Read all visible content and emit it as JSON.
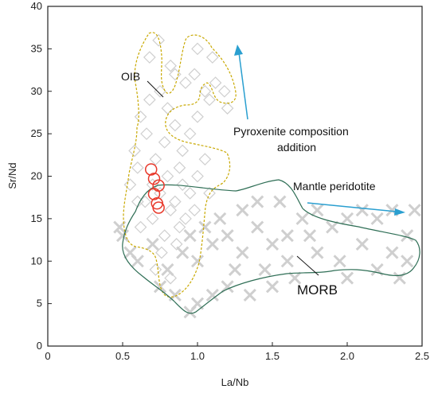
{
  "chart_data": {
    "type": "scatter",
    "xlabel": "La/Nb",
    "ylabel": "Sr/Nd",
    "xlim": [
      0,
      2.5
    ],
    "ylim": [
      0,
      40
    ],
    "xticks": [
      "0",
      "0.5",
      "1.0",
      "1.5",
      "2.0",
      "2.5"
    ],
    "yticks": [
      "0",
      "5",
      "10",
      "15",
      "20",
      "25",
      "30",
      "35",
      "40"
    ],
    "grid": false,
    "colors": {
      "oib_field": "#c8a800",
      "morb_field": "#2e6e55",
      "arrow": "#2a9fd0",
      "sample": "#e8392b",
      "grey_points": "#cfcfcf"
    },
    "series": [
      {
        "marker": "diamond",
        "points": [
          [
            0.75,
            30
          ],
          [
            0.8,
            28
          ],
          [
            0.85,
            26
          ],
          [
            0.78,
            24
          ],
          [
            0.72,
            22
          ],
          [
            0.9,
            23
          ],
          [
            0.95,
            25
          ],
          [
            1.0,
            27
          ],
          [
            0.88,
            21
          ],
          [
            0.8,
            20
          ],
          [
            0.7,
            19
          ],
          [
            0.75,
            18
          ],
          [
            0.85,
            17
          ],
          [
            0.95,
            18
          ],
          [
            1.0,
            20
          ],
          [
            1.05,
            22
          ],
          [
            0.9,
            19
          ],
          [
            0.82,
            16
          ],
          [
            0.7,
            15
          ],
          [
            0.65,
            17
          ],
          [
            0.6,
            21
          ],
          [
            0.58,
            23
          ],
          [
            0.78,
            13
          ],
          [
            0.88,
            14
          ],
          [
            0.98,
            16
          ],
          [
            1.08,
            18
          ],
          [
            0.92,
            15
          ],
          [
            0.76,
            11
          ],
          [
            0.86,
            12
          ],
          [
            0.72,
            9
          ],
          [
            0.82,
            8
          ],
          [
            0.68,
            34
          ],
          [
            0.74,
            36
          ],
          [
            0.82,
            33
          ],
          [
            0.92,
            31
          ],
          [
            0.98,
            32
          ],
          [
            1.05,
            30
          ],
          [
            1.08,
            29
          ],
          [
            1.12,
            31
          ],
          [
            1.18,
            30
          ],
          [
            1.2,
            28
          ],
          [
            1.1,
            34
          ],
          [
            1.0,
            35
          ],
          [
            0.85,
            32
          ],
          [
            0.62,
            27
          ],
          [
            0.66,
            25
          ],
          [
            0.68,
            29
          ],
          [
            0.55,
            19
          ],
          [
            0.6,
            17
          ],
          [
            0.62,
            14
          ]
        ]
      },
      {
        "marker": "cross",
        "points": [
          [
            0.5,
            13
          ],
          [
            0.55,
            11
          ],
          [
            0.6,
            10
          ],
          [
            0.7,
            12
          ],
          [
            0.8,
            9
          ],
          [
            0.9,
            11
          ],
          [
            1.0,
            10
          ],
          [
            1.1,
            12
          ],
          [
            1.2,
            13
          ],
          [
            1.3,
            11
          ],
          [
            1.4,
            14
          ],
          [
            1.5,
            12
          ],
          [
            1.6,
            13
          ],
          [
            1.7,
            15
          ],
          [
            1.8,
            16
          ],
          [
            1.9,
            14
          ],
          [
            2.0,
            15
          ],
          [
            2.1,
            16
          ],
          [
            2.2,
            15
          ],
          [
            2.3,
            16
          ],
          [
            2.4,
            13
          ],
          [
            2.45,
            16
          ],
          [
            2.3,
            11
          ],
          [
            2.2,
            9
          ],
          [
            2.1,
            12
          ],
          [
            1.95,
            10
          ],
          [
            1.8,
            11
          ],
          [
            1.65,
            8
          ],
          [
            1.5,
            7
          ],
          [
            1.35,
            6
          ],
          [
            1.2,
            7
          ],
          [
            1.1,
            6
          ],
          [
            1.0,
            5
          ],
          [
            0.95,
            4
          ],
          [
            0.85,
            6
          ],
          [
            0.75,
            7
          ],
          [
            1.25,
            9
          ],
          [
            1.45,
            9
          ],
          [
            1.6,
            10
          ],
          [
            1.75,
            13
          ],
          [
            1.3,
            16
          ],
          [
            1.15,
            15
          ],
          [
            1.05,
            14
          ],
          [
            0.95,
            13
          ],
          [
            1.55,
            17
          ],
          [
            1.4,
            17
          ],
          [
            2.35,
            8
          ],
          [
            2.4,
            10
          ],
          [
            0.48,
            14
          ],
          [
            2.0,
            8
          ]
        ]
      },
      {
        "marker": "circle",
        "points": [
          [
            0.69,
            20.8
          ],
          [
            0.71,
            19.7
          ],
          [
            0.74,
            18.9
          ],
          [
            0.71,
            17.9
          ],
          [
            0.73,
            16.8
          ],
          [
            0.74,
            16.3
          ]
        ]
      }
    ],
    "annotations": [
      {
        "text": "OIB"
      },
      {
        "text": "Pyroxenite composition"
      },
      {
        "text": "addition"
      },
      {
        "text": "Mantle  peridotite"
      },
      {
        "text": "MORB"
      }
    ]
  }
}
